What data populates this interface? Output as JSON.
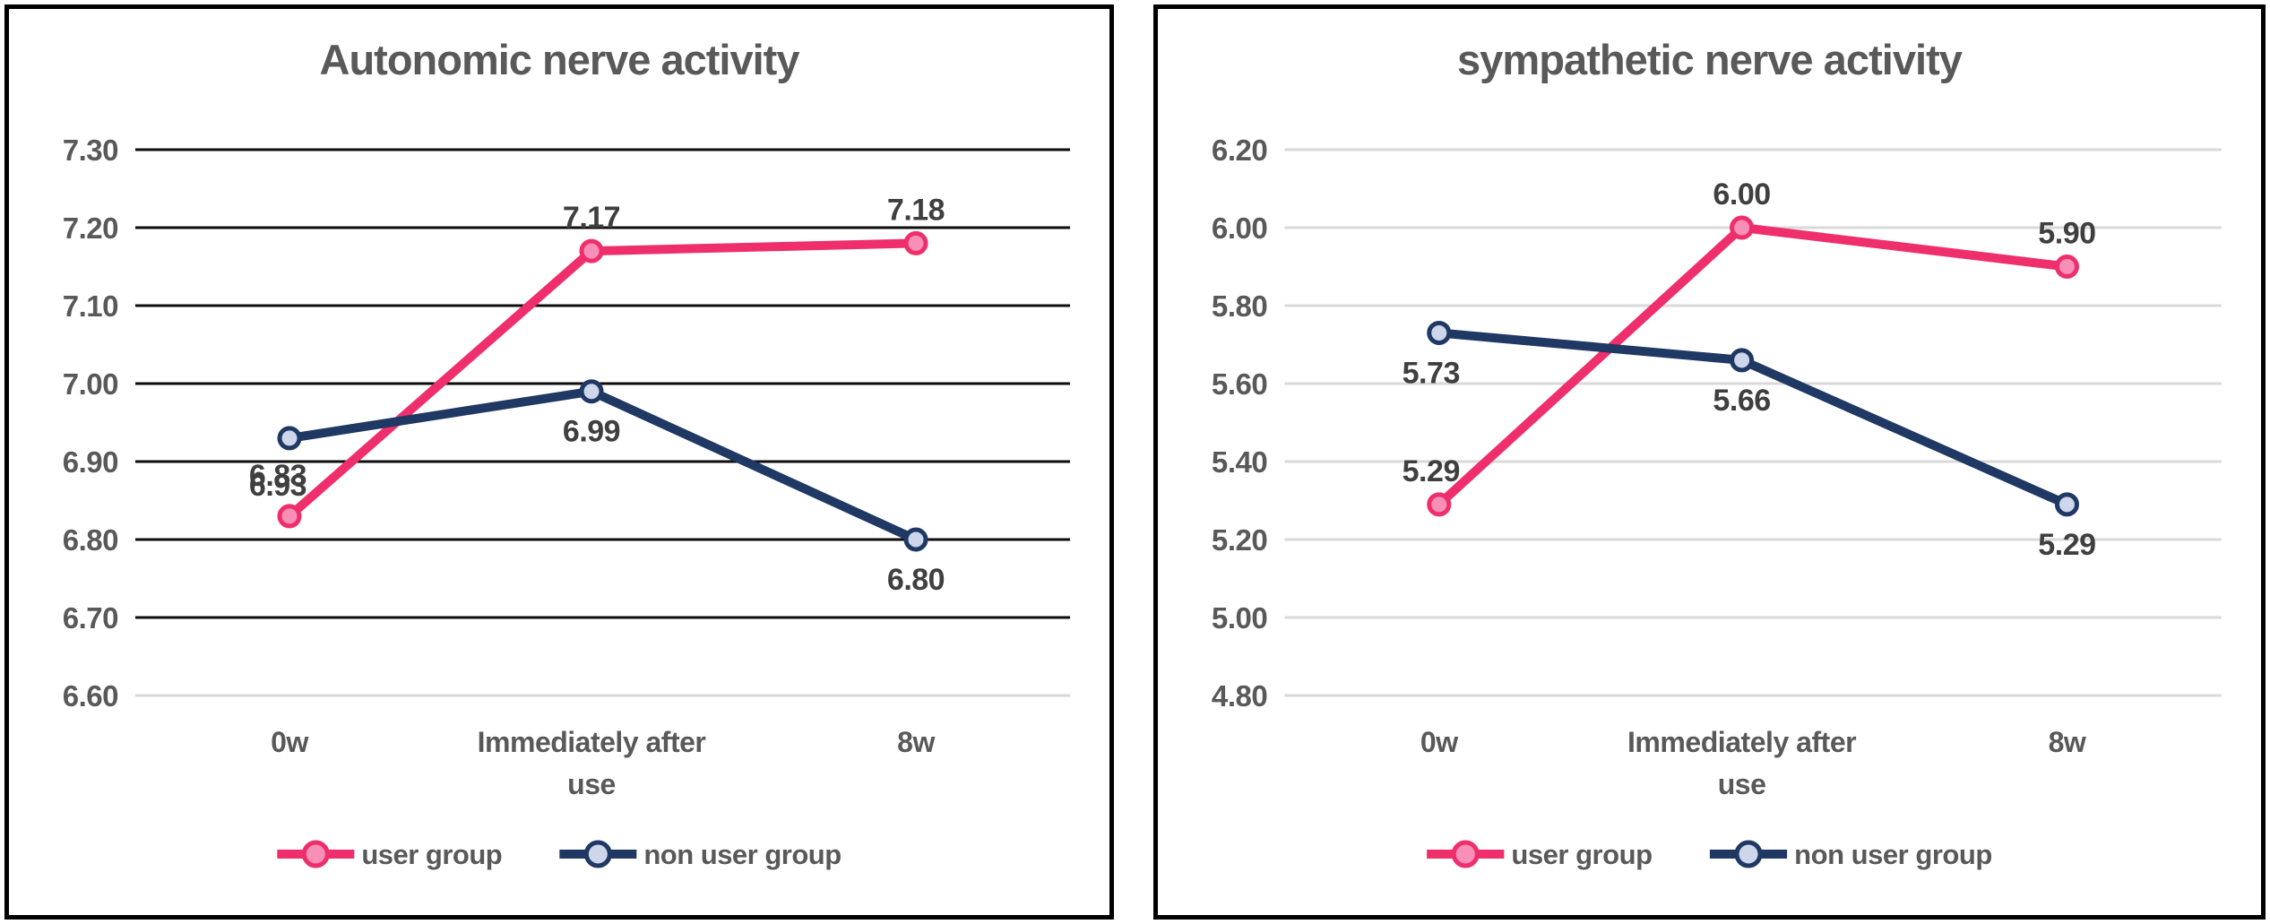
{
  "page": {
    "background_color": "#ffffff",
    "panel_border_color": "#000000",
    "title_color": "#595959",
    "tick_label_color": "#595959",
    "category_label_color": "#595959",
    "data_label_color": "#3f3f3f",
    "legend_text_color": "#595959"
  },
  "chart_data": [
    {
      "type": "line",
      "title": "Autonomic nerve activity",
      "xlabel": "",
      "ylabel": "",
      "categories": [
        [
          "0w"
        ],
        [
          "Immediately after",
          "use"
        ],
        [
          "8w"
        ]
      ],
      "y_ticks": [
        "7.30",
        "7.20",
        "7.10",
        "7.00",
        "6.90",
        "6.80",
        "6.70",
        "6.60"
      ],
      "ylim": [
        6.6,
        7.3
      ],
      "grid": "on",
      "gridline_colors": [
        "#0d0d0d",
        "#0d0d0d",
        "#0d0d0d",
        "#0d0d0d",
        "#0d0d0d",
        "#0d0d0d",
        "#0d0d0d",
        "#d9d9d9"
      ],
      "legend_position": "bottom",
      "series": [
        {
          "name": "user group",
          "line_color": "#ee2f6c",
          "marker_fill": "#f78fb7",
          "values": [
            6.83,
            7.17,
            7.18
          ],
          "data_labels": [
            "6.83",
            "7.17",
            "7.18"
          ],
          "label_side": "above",
          "label_dx": [
            -13,
            0,
            0
          ],
          "label_dy": [
            -8,
            0,
            0
          ]
        },
        {
          "name": "non user group",
          "line_color": "#1f3864",
          "marker_fill": "#cdd6eb",
          "values": [
            6.93,
            6.99,
            6.8
          ],
          "data_labels": [
            "6.93",
            "6.99",
            "6.80"
          ],
          "label_side": "below",
          "label_dx": [
            -13,
            0,
            0
          ],
          "label_dy": [
            8,
            0,
            0
          ]
        }
      ]
    },
    {
      "type": "line",
      "title": "sympathetic nerve activity",
      "xlabel": "",
      "ylabel": "",
      "categories": [
        [
          "0w"
        ],
        [
          "Immediately after",
          "use"
        ],
        [
          "8w"
        ]
      ],
      "y_ticks": [
        "6.20",
        "6.00",
        "5.80",
        "5.60",
        "5.40",
        "5.20",
        "5.00",
        "4.80"
      ],
      "ylim": [
        4.8,
        6.2
      ],
      "grid": "on",
      "gridline_colors": [
        "#d9d9d9",
        "#d9d9d9",
        "#d9d9d9",
        "#d9d9d9",
        "#d9d9d9",
        "#d9d9d9",
        "#d9d9d9",
        "#d9d9d9"
      ],
      "legend_position": "bottom",
      "series": [
        {
          "name": "user group",
          "line_color": "#ee2f6c",
          "marker_fill": "#f78fb7",
          "values": [
            5.29,
            6.0,
            5.9
          ],
          "data_labels": [
            "5.29",
            "6.00",
            "5.90"
          ],
          "label_side": "above",
          "label_dx": [
            -9,
            0,
            0
          ],
          "label_dy": [
            0,
            0,
            0
          ]
        },
        {
          "name": "non user group",
          "line_color": "#1f3864",
          "marker_fill": "#cdd6eb",
          "values": [
            5.73,
            5.66,
            5.29
          ],
          "data_labels": [
            "5.73",
            "5.66",
            "5.29"
          ],
          "label_side": "below",
          "label_dx": [
            -9,
            0,
            0
          ],
          "label_dy": [
            0,
            0,
            0
          ]
        }
      ]
    }
  ]
}
